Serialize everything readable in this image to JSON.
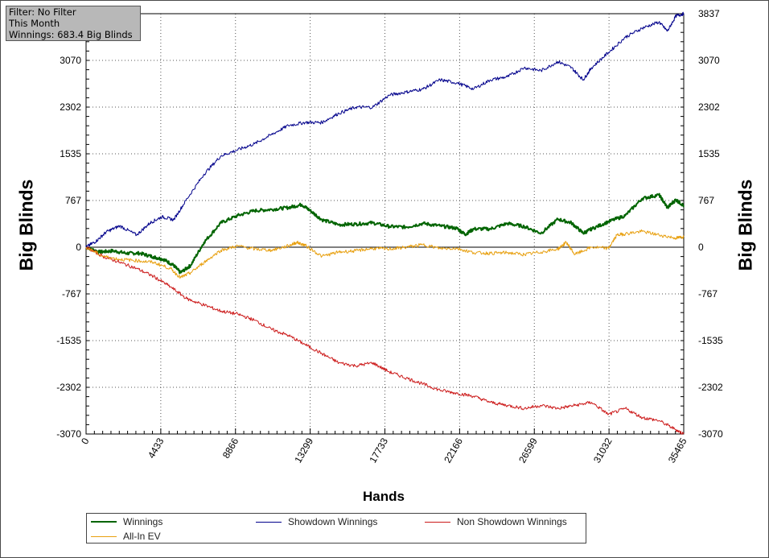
{
  "info": {
    "filter": "Filter: No Filter",
    "period": "This Month",
    "winnings": "Winnings: 683.4 Big Blinds"
  },
  "chart_data": {
    "type": "line",
    "xlabel": "Hands",
    "ylabel": "Big Blinds",
    "xticks": [
      0,
      4433,
      8866,
      13299,
      17733,
      22166,
      26599,
      31032,
      35465
    ],
    "yticks": [
      -3070,
      -2302,
      -1535,
      -767,
      0,
      767,
      1535,
      2302,
      3070
    ],
    "ytick_right_extra": 3837,
    "xlim": [
      0,
      35465
    ],
    "ylim": [
      -3070,
      3837
    ],
    "grid": true,
    "legend_position": "bottom",
    "series": [
      {
        "name": "Winnings",
        "color": "#006400",
        "x": [
          0,
          800,
          1600,
          2400,
          3200,
          4000,
          4600,
          5200,
          5600,
          6200,
          7000,
          8000,
          9000,
          10000,
          11000,
          12000,
          12800,
          13300,
          14000,
          15000,
          16000,
          17000,
          18000,
          19000,
          20000,
          21000,
          22000,
          22500,
          23000,
          24000,
          25000,
          26000,
          27000,
          28000,
          28800,
          29500,
          30000,
          31000,
          32000,
          33000,
          34000,
          34500,
          35000,
          35465
        ],
        "y": [
          0,
          -80,
          -60,
          -100,
          -100,
          -160,
          -200,
          -300,
          -420,
          -300,
          80,
          400,
          520,
          600,
          620,
          650,
          700,
          600,
          450,
          370,
          380,
          400,
          340,
          330,
          390,
          350,
          310,
          210,
          300,
          300,
          390,
          340,
          230,
          460,
          400,
          230,
          300,
          420,
          520,
          800,
          860,
          650,
          780,
          683
        ]
      },
      {
        "name": "Showdown Winnings",
        "color": "#00008b",
        "x": [
          0,
          600,
          1200,
          2000,
          3000,
          3800,
          4500,
          5200,
          6000,
          7000,
          8000,
          9000,
          10000,
          11000,
          12000,
          13000,
          14000,
          15000,
          16000,
          17000,
          18000,
          19000,
          20000,
          21000,
          22000,
          23000,
          24000,
          25000,
          26000,
          27000,
          28000,
          28800,
          29500,
          30000,
          31000,
          32000,
          33000,
          34000,
          34500,
          35000,
          35465
        ],
        "y": [
          0,
          100,
          250,
          350,
          200,
          400,
          500,
          450,
          800,
          1200,
          1500,
          1600,
          1700,
          1850,
          2000,
          2050,
          2050,
          2200,
          2300,
          2300,
          2500,
          2550,
          2600,
          2750,
          2700,
          2600,
          2750,
          2800,
          2950,
          2900,
          3050,
          2950,
          2750,
          2950,
          3200,
          3450,
          3600,
          3700,
          3550,
          3800,
          3837
        ]
      },
      {
        "name": "Non Showdown Winnings",
        "color": "#cc1a1a",
        "x": [
          0,
          1000,
          2000,
          3000,
          4000,
          5000,
          6000,
          7000,
          8000,
          9000,
          10000,
          11000,
          12000,
          13000,
          14000,
          15000,
          16000,
          17000,
          18000,
          19000,
          20000,
          21000,
          22000,
          23000,
          24000,
          25000,
          26000,
          27000,
          28000,
          29000,
          30000,
          31000,
          32000,
          33000,
          34000,
          35000,
          35465
        ],
        "y": [
          0,
          -150,
          -250,
          -350,
          -480,
          -650,
          -850,
          -950,
          -1050,
          -1100,
          -1200,
          -1350,
          -1450,
          -1600,
          -1750,
          -1900,
          -1950,
          -1900,
          -2050,
          -2150,
          -2250,
          -2350,
          -2400,
          -2450,
          -2550,
          -2600,
          -2650,
          -2600,
          -2650,
          -2600,
          -2550,
          -2750,
          -2650,
          -2800,
          -2850,
          -3000,
          -3070
        ]
      },
      {
        "name": "All-In EV",
        "color": "#e8a010",
        "x": [
          0,
          1000,
          2000,
          3000,
          4000,
          5000,
          5600,
          6200,
          7000,
          8000,
          9000,
          10000,
          11000,
          12000,
          12500,
          13000,
          14000,
          15000,
          16000,
          17000,
          18000,
          19000,
          20000,
          21000,
          22000,
          23000,
          24000,
          25000,
          26000,
          27000,
          28000,
          28500,
          29000,
          30000,
          31000,
          31500,
          32000,
          33000,
          34000,
          35000,
          35465
        ],
        "y": [
          0,
          -150,
          -200,
          -220,
          -250,
          -350,
          -500,
          -420,
          -250,
          -50,
          20,
          -30,
          -50,
          20,
          80,
          30,
          -150,
          -80,
          -60,
          -20,
          -30,
          0,
          40,
          -20,
          -20,
          -90,
          -100,
          -90,
          -120,
          -80,
          -30,
          80,
          -120,
          0,
          -20,
          200,
          220,
          260,
          200,
          150,
          170
        ]
      }
    ]
  },
  "legend": {
    "items": [
      "Winnings",
      "Showdown Winnings",
      "Non Showdown Winnings",
      "All-In EV"
    ]
  }
}
